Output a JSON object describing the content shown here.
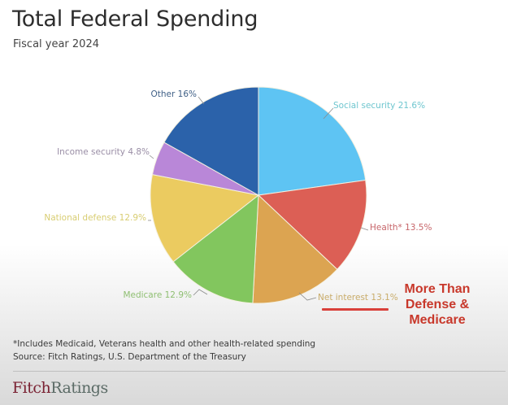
{
  "header": {
    "title": "Total Federal Spending",
    "subtitle": "Fiscal year 2024"
  },
  "chart_data": {
    "type": "pie",
    "title": "Total Federal Spending",
    "subtitle": "Fiscal year 2024",
    "start": "top",
    "direction": "clockwise",
    "slices": [
      {
        "name": "Social security",
        "value": 21.6,
        "label": "Social security 21.6%",
        "color": "#5ec4f3",
        "label_color": "#6fc6cf"
      },
      {
        "name": "Health*",
        "value": 13.5,
        "label": "Health* 13.5%",
        "color": "#dc5f55",
        "label_color": "#c7666a"
      },
      {
        "name": "Net interest",
        "value": 13.1,
        "label": "Net interest 13.1%",
        "color": "#dca451",
        "label_color": "#c9ac6a"
      },
      {
        "name": "Medicare",
        "value": 12.9,
        "label": "Medicare 12.9%",
        "color": "#82c65e",
        "label_color": "#8fbf72"
      },
      {
        "name": "National defense",
        "value": 12.9,
        "label": "National defense 12.9%",
        "color": "#ebcb60",
        "label_color": "#d8cd72"
      },
      {
        "name": "Income security",
        "value": 4.8,
        "label": "Income security 4.8%",
        "color": "#b987d8",
        "label_color": "#9a8ea6"
      },
      {
        "name": "Other",
        "value": 16.0,
        "label": "Other 16%",
        "color": "#2b62aa",
        "label_color": "#3f5f86"
      }
    ]
  },
  "annotation": {
    "callout": "More Than\nDefense &\nMedicare",
    "highlighted_slice": "Net interest"
  },
  "footer": {
    "footnote": "*Includes Medicaid, Veterans health and other health-related spending",
    "source": "Source: Fitch Ratings, U.S. Department of the Treasury",
    "logo_part1": "Fitch",
    "logo_part2": "Ratings"
  }
}
